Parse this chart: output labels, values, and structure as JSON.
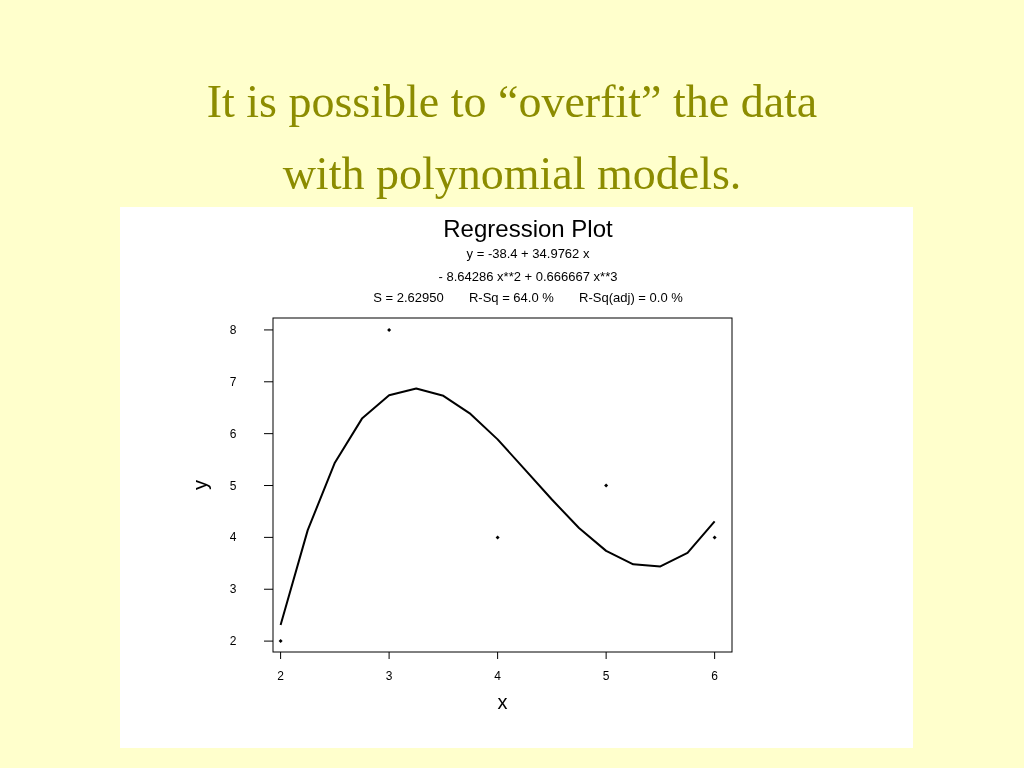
{
  "chart_data": {
    "type": "scatter",
    "title": "It is possible to “overfit” the data with polynomial models.",
    "subtitle": "Regression Plot",
    "xlabel": "x",
    "ylabel": "y",
    "annotations": [
      "y = -38.4 + 34.9762 x",
      "- 8.64286 x**2 + 0.666667 x**3",
      "S = 2.62950       R-Sq = 64.0 %       R-Sq(adj) = 0.0 %"
    ],
    "xlim": [
      1.93,
      6.16
    ],
    "ylim": [
      1.79,
      8.23
    ],
    "xticks": [
      2,
      3,
      4,
      5,
      6
    ],
    "yticks": [
      2,
      3,
      4,
      5,
      6,
      7,
      8
    ],
    "grid": false,
    "series": [
      {
        "marker": "diamond",
        "color": "#000000",
        "x": [
          2,
          3,
          4,
          5,
          6
        ],
        "values": [
          2,
          8,
          4,
          5,
          4
        ]
      },
      {
        "type": "line",
        "marker": "none",
        "line_style": "solid",
        "color": "#000000",
        "x": [
          2,
          2.25,
          2.5,
          2.75,
          3,
          3.25,
          3.5,
          3.75,
          4,
          4.25,
          4.5,
          4.75,
          5,
          5.25,
          5.5,
          5.75,
          6
        ],
        "values": [
          2.31,
          4.14,
          5.44,
          6.29,
          6.74,
          6.87,
          6.73,
          6.38,
          5.89,
          5.31,
          4.73,
          4.18,
          3.74,
          3.48,
          3.44,
          3.7,
          4.31
        ]
      }
    ]
  }
}
